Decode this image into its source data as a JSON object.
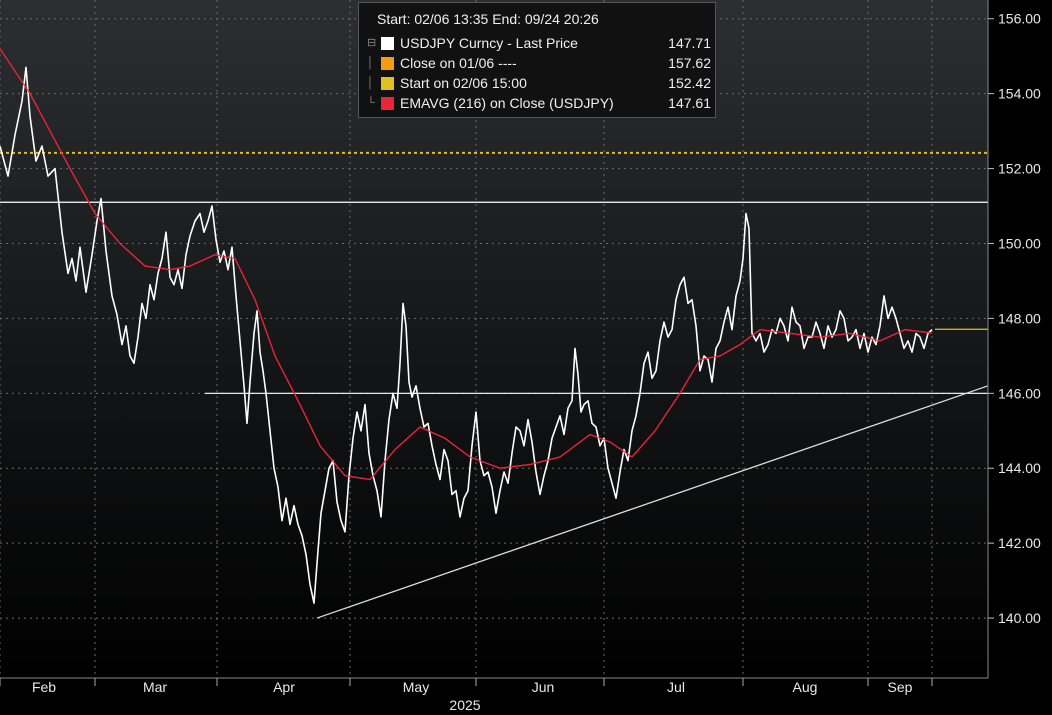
{
  "chart_data": {
    "type": "line",
    "year_label": "2025",
    "x_labels": [
      "Feb",
      "Mar",
      "Apr",
      "May",
      "Jun",
      "Jul",
      "Aug",
      "Sep"
    ],
    "y_ticks": [
      "156.00",
      "154.00",
      "152.00",
      "150.00",
      "148.00",
      "146.00",
      "144.00",
      "142.00",
      "140.00"
    ],
    "ylim": [
      138.4,
      156.5
    ],
    "grid": true,
    "legend_placement": "top-center",
    "legend": {
      "header": "Start: 02/06 13:35 End: 09/24 20:26",
      "items": [
        {
          "name": "USDJPY Curncy - Last Price",
          "value": "147.71",
          "color": "#ffffff"
        },
        {
          "name": "Close on 01/06 ----",
          "value": "157.62",
          "color": "#f39c12"
        },
        {
          "name": "Start on 02/06 15:00",
          "value": "152.42",
          "color": "#e0c020"
        },
        {
          "name": "EMAVG (216)  on Close (USDJPY)",
          "value": "147.61",
          "color": "#e8253a"
        }
      ]
    },
    "series": [
      {
        "name": "USDJPY Curncy - Last Price",
        "color": "#ffffff",
        "values": [
          [
            0,
            152.6
          ],
          [
            8,
            151.8
          ],
          [
            15,
            152.9
          ],
          [
            22,
            153.8
          ],
          [
            26,
            154.7
          ],
          [
            30,
            153.4
          ],
          [
            36,
            152.2
          ],
          [
            42,
            152.6
          ],
          [
            48,
            151.8
          ],
          [
            55,
            152.0
          ],
          [
            62,
            150.3
          ],
          [
            68,
            149.2
          ],
          [
            72,
            149.6
          ],
          [
            76,
            149.0
          ],
          [
            80,
            149.9
          ],
          [
            86,
            148.7
          ],
          [
            92,
            149.7
          ],
          [
            97,
            150.6
          ],
          [
            101,
            151.2
          ],
          [
            106,
            149.8
          ],
          [
            112,
            148.6
          ],
          [
            117,
            148.1
          ],
          [
            122,
            147.3
          ],
          [
            126,
            147.8
          ],
          [
            130,
            147.0
          ],
          [
            134,
            146.8
          ],
          [
            138,
            147.5
          ],
          [
            142,
            148.4
          ],
          [
            146,
            148.0
          ],
          [
            150,
            148.9
          ],
          [
            154,
            148.5
          ],
          [
            158,
            149.2
          ],
          [
            162,
            149.6
          ],
          [
            166,
            150.3
          ],
          [
            170,
            149.1
          ],
          [
            174,
            148.9
          ],
          [
            178,
            149.3
          ],
          [
            182,
            148.8
          ],
          [
            186,
            149.7
          ],
          [
            190,
            150.2
          ],
          [
            195,
            150.6
          ],
          [
            200,
            150.8
          ],
          [
            204,
            150.3
          ],
          [
            208,
            150.6
          ],
          [
            212,
            151.0
          ],
          [
            216,
            150.1
          ],
          [
            220,
            149.5
          ],
          [
            224,
            149.8
          ],
          [
            228,
            149.3
          ],
          [
            232,
            149.9
          ],
          [
            236,
            148.6
          ],
          [
            240,
            147.4
          ],
          [
            244,
            146.2
          ],
          [
            247,
            145.2
          ],
          [
            250,
            146.3
          ],
          [
            254,
            147.6
          ],
          [
            257,
            148.2
          ],
          [
            260,
            147.1
          ],
          [
            263,
            146.6
          ],
          [
            266,
            146.0
          ],
          [
            270,
            145.0
          ],
          [
            274,
            144.0
          ],
          [
            278,
            143.5
          ],
          [
            282,
            142.6
          ],
          [
            286,
            143.2
          ],
          [
            290,
            142.5
          ],
          [
            294,
            143.0
          ],
          [
            298,
            142.5
          ],
          [
            302,
            142.2
          ],
          [
            306,
            141.7
          ],
          [
            310,
            140.9
          ],
          [
            314,
            140.4
          ],
          [
            318,
            141.8
          ],
          [
            321,
            142.8
          ],
          [
            325,
            143.4
          ],
          [
            329,
            144.0
          ],
          [
            333,
            144.2
          ],
          [
            337,
            143.1
          ],
          [
            341,
            142.6
          ],
          [
            345,
            142.3
          ],
          [
            349,
            143.8
          ],
          [
            353,
            144.8
          ],
          [
            357,
            145.5
          ],
          [
            361,
            145.0
          ],
          [
            365,
            145.7
          ],
          [
            369,
            144.4
          ],
          [
            373,
            143.8
          ],
          [
            377,
            143.4
          ],
          [
            381,
            142.7
          ],
          [
            385,
            144.2
          ],
          [
            389,
            145.3
          ],
          [
            393,
            146.0
          ],
          [
            397,
            145.6
          ],
          [
            400,
            146.8
          ],
          [
            403,
            148.4
          ],
          [
            406,
            147.8
          ],
          [
            409,
            146.3
          ],
          [
            412,
            145.9
          ],
          [
            416,
            146.2
          ],
          [
            420,
            145.6
          ],
          [
            424,
            145.1
          ],
          [
            428,
            145.2
          ],
          [
            432,
            144.6
          ],
          [
            436,
            144.1
          ],
          [
            440,
            143.7
          ],
          [
            444,
            144.5
          ],
          [
            448,
            144.2
          ],
          [
            452,
            143.3
          ],
          [
            456,
            143.4
          ],
          [
            460,
            142.7
          ],
          [
            464,
            143.2
          ],
          [
            468,
            143.4
          ],
          [
            472,
            144.6
          ],
          [
            476,
            145.5
          ],
          [
            480,
            144.2
          ],
          [
            484,
            143.8
          ],
          [
            488,
            143.9
          ],
          [
            492,
            143.5
          ],
          [
            496,
            142.8
          ],
          [
            500,
            143.4
          ],
          [
            504,
            143.9
          ],
          [
            508,
            143.6
          ],
          [
            512,
            144.4
          ],
          [
            516,
            145.1
          ],
          [
            520,
            145.0
          ],
          [
            524,
            144.6
          ],
          [
            528,
            145.3
          ],
          [
            532,
            144.7
          ],
          [
            536,
            143.9
          ],
          [
            540,
            143.3
          ],
          [
            544,
            143.8
          ],
          [
            548,
            144.2
          ],
          [
            552,
            144.8
          ],
          [
            556,
            145.1
          ],
          [
            560,
            145.4
          ],
          [
            564,
            144.9
          ],
          [
            568,
            145.6
          ],
          [
            572,
            145.8
          ],
          [
            575,
            147.2
          ],
          [
            578,
            146.5
          ],
          [
            581,
            145.5
          ],
          [
            584,
            145.7
          ],
          [
            588,
            145.8
          ],
          [
            592,
            145.2
          ],
          [
            596,
            145.1
          ],
          [
            600,
            144.6
          ],
          [
            604,
            144.8
          ],
          [
            608,
            144.0
          ],
          [
            612,
            143.6
          ],
          [
            616,
            143.2
          ],
          [
            620,
            143.9
          ],
          [
            624,
            144.5
          ],
          [
            628,
            144.2
          ],
          [
            632,
            145.0
          ],
          [
            636,
            145.4
          ],
          [
            640,
            146.0
          ],
          [
            644,
            146.8
          ],
          [
            648,
            147.1
          ],
          [
            652,
            146.4
          ],
          [
            656,
            146.6
          ],
          [
            660,
            147.4
          ],
          [
            664,
            147.9
          ],
          [
            668,
            147.5
          ],
          [
            672,
            147.7
          ],
          [
            676,
            148.5
          ],
          [
            680,
            148.9
          ],
          [
            684,
            149.1
          ],
          [
            688,
            148.4
          ],
          [
            692,
            148.5
          ],
          [
            696,
            147.8
          ],
          [
            700,
            146.6
          ],
          [
            704,
            147.0
          ],
          [
            708,
            146.9
          ],
          [
            712,
            146.3
          ],
          [
            716,
            147.2
          ],
          [
            720,
            147.4
          ],
          [
            724,
            147.9
          ],
          [
            728,
            148.3
          ],
          [
            732,
            147.7
          ],
          [
            736,
            148.6
          ],
          [
            740,
            149.0
          ],
          [
            743,
            149.6
          ],
          [
            746,
            150.8
          ],
          [
            749,
            150.4
          ],
          [
            752,
            147.6
          ],
          [
            756,
            147.4
          ],
          [
            760,
            147.6
          ],
          [
            764,
            147.1
          ],
          [
            768,
            147.3
          ],
          [
            772,
            147.7
          ],
          [
            776,
            147.6
          ],
          [
            780,
            148.0
          ],
          [
            784,
            147.8
          ],
          [
            788,
            147.4
          ],
          [
            792,
            148.3
          ],
          [
            796,
            147.9
          ],
          [
            800,
            147.8
          ],
          [
            804,
            147.2
          ],
          [
            808,
            147.5
          ],
          [
            812,
            147.5
          ],
          [
            816,
            147.9
          ],
          [
            820,
            147.6
          ],
          [
            824,
            147.2
          ],
          [
            828,
            147.8
          ],
          [
            832,
            147.5
          ],
          [
            836,
            147.7
          ],
          [
            840,
            148.2
          ],
          [
            844,
            148.0
          ],
          [
            848,
            147.4
          ],
          [
            852,
            147.5
          ],
          [
            856,
            147.7
          ],
          [
            860,
            147.2
          ],
          [
            864,
            147.6
          ],
          [
            868,
            147.1
          ],
          [
            872,
            147.5
          ],
          [
            876,
            147.3
          ],
          [
            880,
            147.8
          ],
          [
            884,
            148.6
          ],
          [
            888,
            148.0
          ],
          [
            892,
            148.3
          ],
          [
            896,
            148.0
          ],
          [
            900,
            147.6
          ],
          [
            904,
            147.2
          ],
          [
            908,
            147.4
          ],
          [
            912,
            147.1
          ],
          [
            916,
            147.6
          ],
          [
            920,
            147.5
          ],
          [
            924,
            147.2
          ],
          [
            928,
            147.6
          ],
          [
            932,
            147.7
          ]
        ]
      },
      {
        "name": "EMAVG (216)  on Close (USDJPY)",
        "color": "#e8253a",
        "values": [
          [
            0,
            155.2
          ],
          [
            15,
            154.6
          ],
          [
            30,
            154.0
          ],
          [
            50,
            153.0
          ],
          [
            70,
            152.0
          ],
          [
            95,
            150.8
          ],
          [
            120,
            150.0
          ],
          [
            145,
            149.4
          ],
          [
            170,
            149.3
          ],
          [
            190,
            149.4
          ],
          [
            215,
            149.7
          ],
          [
            235,
            149.6
          ],
          [
            255,
            148.5
          ],
          [
            275,
            147.0
          ],
          [
            300,
            145.7
          ],
          [
            320,
            144.6
          ],
          [
            345,
            143.8
          ],
          [
            370,
            143.7
          ],
          [
            395,
            144.5
          ],
          [
            420,
            145.1
          ],
          [
            445,
            144.8
          ],
          [
            470,
            144.3
          ],
          [
            500,
            144.0
          ],
          [
            530,
            144.1
          ],
          [
            560,
            144.3
          ],
          [
            590,
            144.9
          ],
          [
            610,
            144.7
          ],
          [
            632,
            144.3
          ],
          [
            655,
            145.0
          ],
          [
            680,
            146.0
          ],
          [
            700,
            146.9
          ],
          [
            720,
            147.0
          ],
          [
            740,
            147.3
          ],
          [
            760,
            147.7
          ],
          [
            790,
            147.6
          ],
          [
            820,
            147.5
          ],
          [
            850,
            147.6
          ],
          [
            880,
            147.4
          ],
          [
            905,
            147.7
          ],
          [
            932,
            147.61
          ]
        ]
      }
    ],
    "hlines": [
      {
        "y": 152.42,
        "color": "#e0c020"
      },
      {
        "y": 151.1,
        "color": "#ffffff"
      },
      {
        "y": 146.0,
        "color": "#ffffff"
      },
      {
        "y": 147.71,
        "color": "#e0c020"
      }
    ],
    "trendline": {
      "from": [
        317,
        140.0
      ],
      "to": [
        988,
        146.2
      ],
      "color": "#dddddd"
    }
  }
}
